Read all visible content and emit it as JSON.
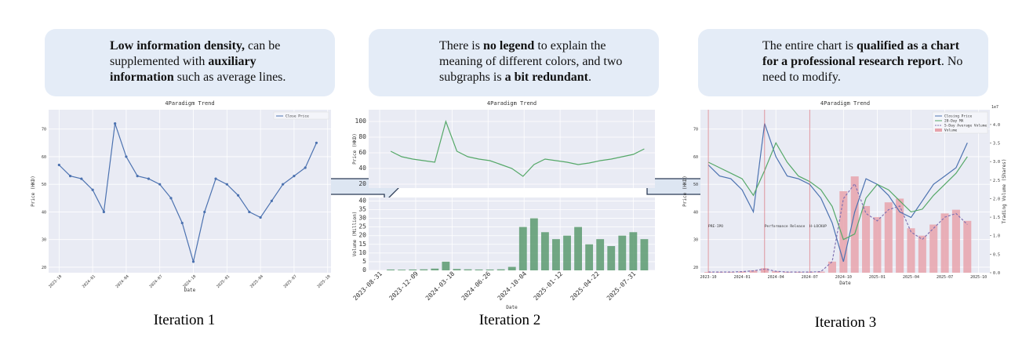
{
  "panels": [
    {
      "bubble": [
        {
          "t": "Low information density,",
          "b": true
        },
        {
          "t": " can be supplemented with ",
          "b": false
        },
        {
          "t": "auxiliary information",
          "b": true
        },
        {
          "t": " such as average lines.",
          "b": false
        }
      ],
      "verdict": "reject",
      "caption": "Iteration 1",
      "chart": {
        "title": "4Paradigm Trend",
        "xlabel": "Date",
        "xlim": [
          "2023-09-03",
          "2025-10-10"
        ],
        "xticks": [
          "2023-10",
          "2024-01",
          "2024-04",
          "2024-07",
          "2024-10",
          "2025-01",
          "2025-04",
          "2025-07",
          "2025-10"
        ],
        "grid": true,
        "legend": "upper right",
        "x": [
          "2023-10",
          "2023-11",
          "2023-12",
          "2024-01",
          "2024-02",
          "2024-03",
          "2024-04",
          "2024-05",
          "2024-06",
          "2024-07",
          "2024-08",
          "2024-09",
          "2024-10",
          "2024-11",
          "2024-12",
          "2025-01",
          "2025-02",
          "2025-03",
          "2025-04",
          "2025-05",
          "2025-06",
          "2025-07",
          "2025-08",
          "2025-09"
        ],
        "axes": [
          {
            "ylabel": "Price (HKD)",
            "ylim": [
              18,
              77
            ],
            "yticks": [
              20,
              30,
              40,
              50,
              60,
              70
            ],
            "series": [
              {
                "name": "Close Price",
                "type": "line",
                "color": "#4c72b0",
                "markers": true,
                "values": [
                  57,
                  53,
                  52,
                  48,
                  40,
                  72,
                  60,
                  53,
                  52,
                  50,
                  45,
                  36,
                  22,
                  40,
                  52,
                  50,
                  46,
                  40,
                  38,
                  44,
                  50,
                  53,
                  56,
                  65
                ]
              }
            ]
          }
        ]
      }
    },
    {
      "bubble": [
        {
          "t": "There is ",
          "b": false
        },
        {
          "t": "no legend",
          "b": true
        },
        {
          "t": " to explain the meaning of different colors, and two subgraphs is ",
          "b": false
        },
        {
          "t": "a bit redundant",
          "b": true
        },
        {
          "t": ".",
          "b": false
        }
      ],
      "verdict": "reject",
      "caption": "Iteration 2",
      "chart": {
        "title": "4Paradigm Trend",
        "xlabel": "Date",
        "xlim": [
          "2023-08-01",
          "2025-09-30"
        ],
        "xticks": [
          "2023-08-31",
          "2023-12-09",
          "2024-03-18",
          "2024-06-26",
          "2024-10-04",
          "2025-01-12",
          "2025-04-22",
          "2025-07-31"
        ],
        "grid": true,
        "x": [
          "2023-10",
          "2023-11",
          "2023-12",
          "2024-01",
          "2024-02",
          "2024-03",
          "2024-04",
          "2024-05",
          "2024-06",
          "2024-07",
          "2024-08",
          "2024-09",
          "2024-10",
          "2024-11",
          "2024-12",
          "2025-01",
          "2025-02",
          "2025-03",
          "2025-04",
          "2025-05",
          "2025-06",
          "2025-07",
          "2025-08",
          "2025-09"
        ],
        "axes": [
          {
            "ylabel": "Price (HKD)",
            "ylim": [
              15,
              115
            ],
            "yticks": [
              20,
              40,
              60,
              80,
              100
            ],
            "series": [
              {
                "type": "line",
                "color": "#55a868",
                "values": [
                  62,
                  55,
                  52,
                  50,
                  48,
                  100,
                  62,
                  55,
                  52,
                  50,
                  45,
                  40,
                  30,
                  45,
                  52,
                  50,
                  48,
                  45,
                  47,
                  50,
                  52,
                  55,
                  58,
                  65
                ]
              }
            ]
          },
          {
            "ylabel": "Volume (Million)",
            "ylim": [
              0,
              42
            ],
            "yticks": [
              0,
              5,
              10,
              15,
              20,
              25,
              30,
              35,
              40
            ],
            "series": [
              {
                "type": "bar",
                "color": "#5b9a6e",
                "values": [
                  0.5,
                  0.4,
                  0.5,
                  0.6,
                  1,
                  5,
                  0.8,
                  0.6,
                  0.5,
                  0.5,
                  0.6,
                  2,
                  25,
                  30,
                  22,
                  18,
                  20,
                  25,
                  15,
                  18,
                  14,
                  20,
                  22,
                  18
                ]
              }
            ]
          }
        ]
      }
    },
    {
      "bubble": [
        {
          "t": "The entire chart is ",
          "b": false
        },
        {
          "t": "qualified as a chart for a professional research report",
          "b": true
        },
        {
          "t": ". No need to modify.",
          "b": false
        }
      ],
      "verdict": "accept",
      "caption": "Iteration 3",
      "chart": {
        "title": "4Paradigm Trend",
        "xlabel": "Date",
        "xlim": [
          "2023-09-10",
          "2025-11-01"
        ],
        "xticks": [
          "2023-10",
          "2024-01",
          "2024-04",
          "2024-07",
          "2024-10",
          "2025-01",
          "2025-04",
          "2025-07",
          "2025-10"
        ],
        "grid": true,
        "legend": "upper right",
        "x": [
          "2023-10",
          "2023-11",
          "2023-12",
          "2024-01",
          "2024-02",
          "2024-03",
          "2024-04",
          "2024-05",
          "2024-06",
          "2024-07",
          "2024-08",
          "2024-09",
          "2024-10",
          "2024-11",
          "2024-12",
          "2025-01",
          "2025-02",
          "2025-03",
          "2025-04",
          "2025-05",
          "2025-06",
          "2025-07",
          "2025-08",
          "2025-09"
        ],
        "events": [
          {
            "x": "2023-10",
            "label": "PRE-IPO"
          },
          {
            "x": "2024-03",
            "label": "Performance Release"
          },
          {
            "x": "2024-07",
            "label": "H-LOCKUP"
          }
        ],
        "axes": [
          {
            "ylabel": "Price (HKD)",
            "ylim": [
              18,
              77
            ],
            "yticks": [
              20,
              30,
              40,
              50,
              60,
              70
            ],
            "y2label": "Trading Volume (Shares)",
            "y2lim": [
              0,
              4.4
            ],
            "y2offset": "1e7",
            "y2ticks": [
              {
                "value": 0,
                "label": "0.0"
              },
              {
                "value": 0.5,
                "label": "0.5"
              },
              {
                "value": 1,
                "label": "1.0"
              },
              {
                "value": 1.5,
                "label": "1.5"
              },
              {
                "value": 2,
                "label": "2.0"
              },
              {
                "value": 2.5,
                "label": "2.5"
              },
              {
                "value": 3,
                "label": "3.0"
              },
              {
                "value": 3.5,
                "label": "3.5"
              },
              {
                "value": 4,
                "label": "4.0"
              }
            ],
            "series": [
              {
                "name": "Closing Price",
                "type": "line",
                "color": "#4c72b0",
                "values": [
                  57,
                  53,
                  52,
                  48,
                  40,
                  72,
                  60,
                  53,
                  52,
                  50,
                  45,
                  36,
                  22,
                  40,
                  52,
                  50,
                  46,
                  40,
                  38,
                  44,
                  50,
                  53,
                  56,
                  65
                ]
              },
              {
                "name": "20-Day MA",
                "type": "line",
                "color": "#55a868",
                "values": [
                  58,
                  56,
                  54,
                  52,
                  46,
                  55,
                  65,
                  58,
                  53,
                  51,
                  48,
                  42,
                  30,
                  32,
                  45,
                  50,
                  48,
                  44,
                  40,
                  41,
                  46,
                  50,
                  54,
                  60
                ]
              },
              {
                "name": "5-Day Average Volume",
                "type": "line",
                "color": "#8172b2",
                "dash": true,
                "axis": "y2",
                "values": [
                  0.02,
                  0.02,
                  0.02,
                  0.03,
                  0.05,
                  0.1,
                  0.04,
                  0.02,
                  0.02,
                  0.02,
                  0.03,
                  0.3,
                  2,
                  2.4,
                  1.6,
                  1.4,
                  1.7,
                  1.8,
                  1.1,
                  0.9,
                  1.2,
                  1.5,
                  1.6,
                  1.3
                ]
              },
              {
                "name": "Volume",
                "type": "bar",
                "color": "#e7a3ab",
                "axis": "y2",
                "values": [
                  0.02,
                  0.02,
                  0.02,
                  0.03,
                  0.06,
                  0.12,
                  0.04,
                  0.02,
                  0.02,
                  0.02,
                  0.03,
                  0.3,
                  2.2,
                  2.6,
                  1.8,
                  1.5,
                  1.9,
                  2,
                  1.2,
                  1,
                  1.3,
                  1.6,
                  1.7,
                  1.4
                ]
              }
            ]
          }
        ]
      }
    }
  ]
}
